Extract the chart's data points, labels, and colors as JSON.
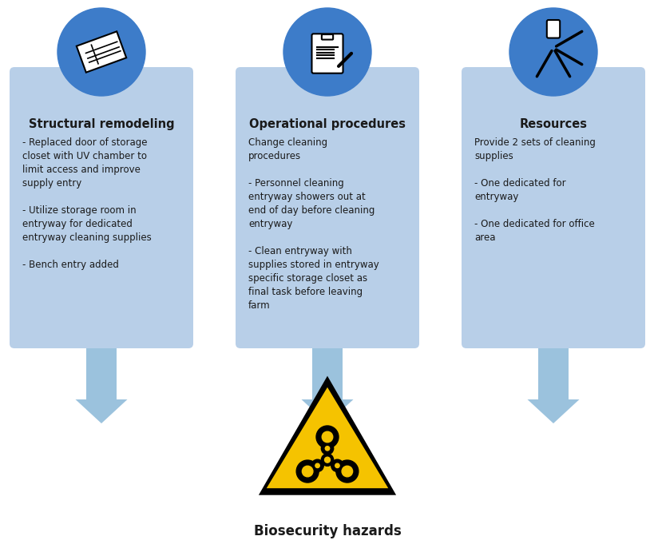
{
  "bg_color": "#ffffff",
  "box_color": "#b8cfe8",
  "circle_color": "#3d7cc9",
  "arrow_color": "#8ab8d8",
  "text_color": "#1a1a1a",
  "boxes": [
    {
      "title": "Structural remodeling",
      "body": "- Replaced door of storage\ncloset with UV chamber to\nlimit access and improve\nsupply entry\n\n- Utilize storage room in\nentryway for dedicated\nentryway cleaning supplies\n\n- Bench entry added"
    },
    {
      "title": "Operational procedures",
      "body": "Change cleaning\nprocedures\n\n- Personnel cleaning\nentryway showers out at\nend of day before cleaning\nentryway\n\n- Clean entryway with\nsupplies stored in entryway\nspecific storage closet as\nfinal task before leaving\nfarm"
    },
    {
      "title": "Resources",
      "body": "Provide 2 sets of cleaning\nsupplies\n\n- One dedicated for\nentryway\n\n- One dedicated for office\narea"
    }
  ],
  "hazard_label": "Biosecurity hazards",
  "triangle_color": "#f5c300",
  "triangle_border": "#1a1a1a"
}
